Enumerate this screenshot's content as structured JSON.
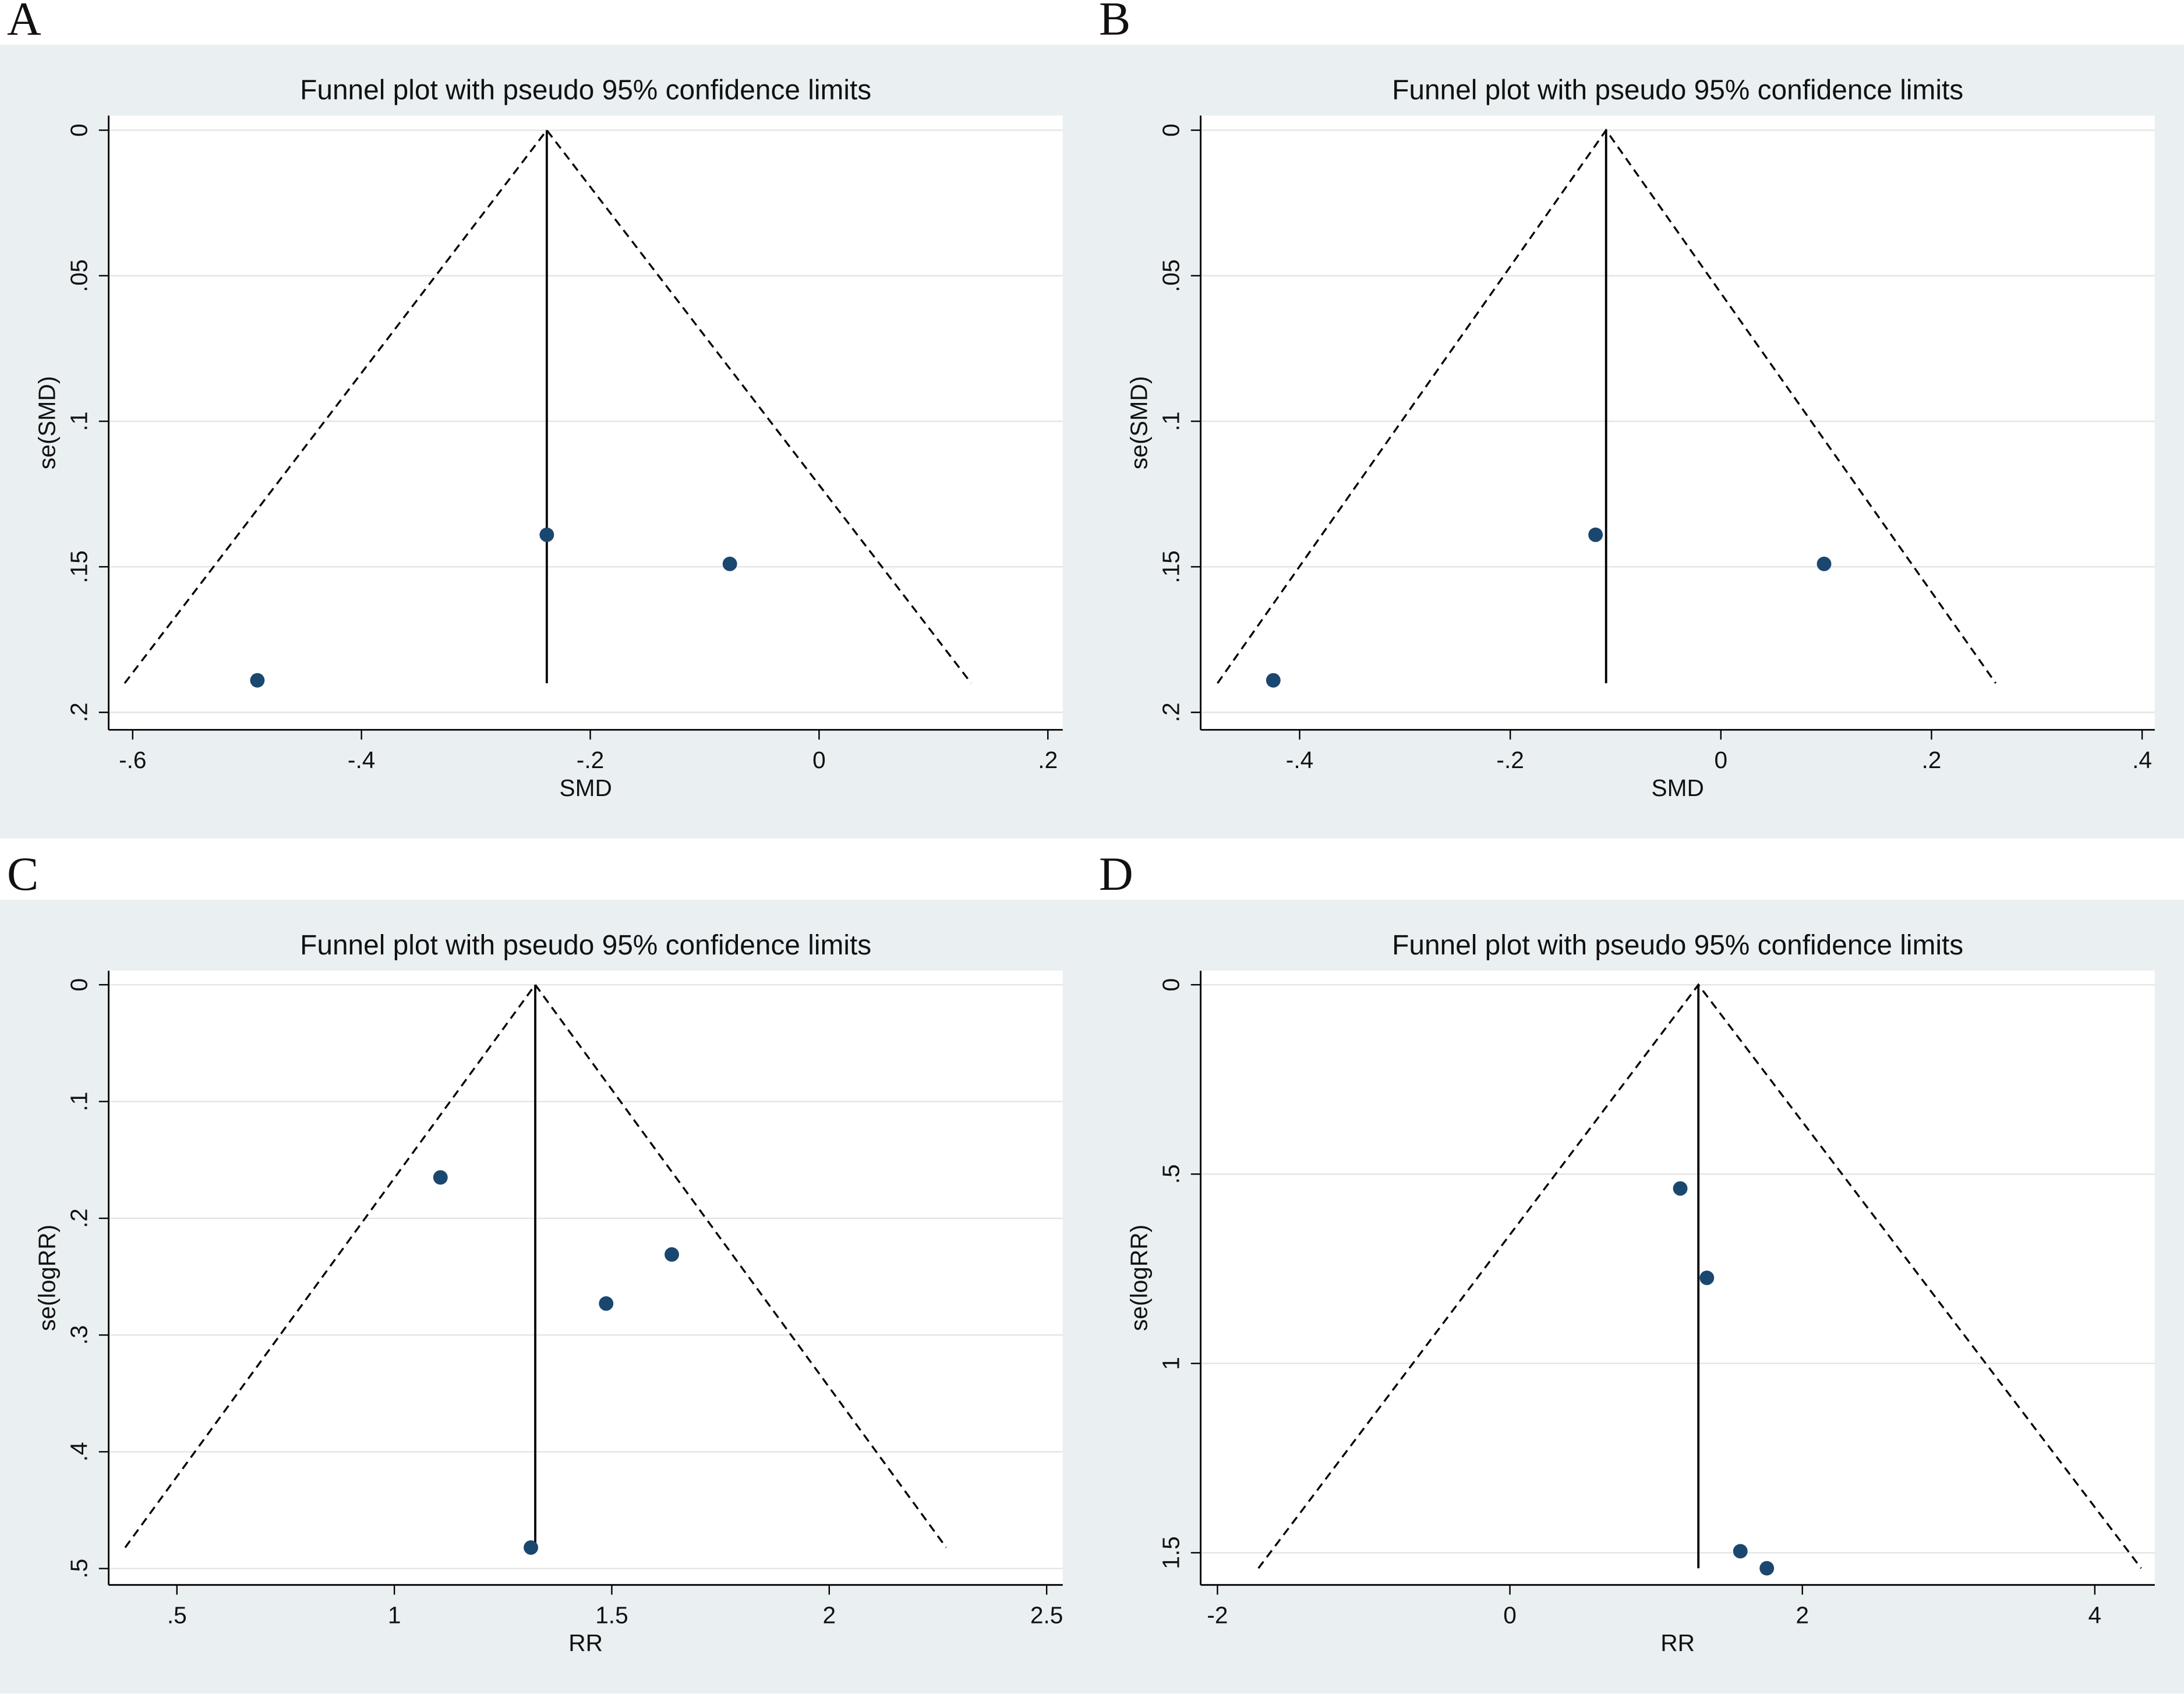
{
  "chart_data": [
    {
      "type": "funnel",
      "panel": "A",
      "title": "Funnel plot with pseudo 95% confidence limits",
      "x_label": "SMD",
      "y_label": "se(SMD)",
      "x": [
        -0.238,
        -0.078,
        -0.491
      ],
      "y": [
        0.139,
        0.149,
        0.189
      ],
      "color": "#1a476f",
      "reference_line": {
        "x": [
          -0.238,
          -0.238
        ],
        "y": [
          0,
          0.19
        ]
      },
      "funnel": {
        "x": [
          -0.607,
          -0.238,
          0.133
        ],
        "y": [
          0.19,
          0,
          0.19
        ]
      },
      "xlim": [
        -0.621,
        0.213
      ],
      "ylim": [
        -0.005,
        0.206
      ],
      "y_reversed": true,
      "grid": true,
      "xticks": [
        {
          "value": -0.6,
          "label": "-.6"
        },
        {
          "value": -0.4,
          "label": "-.4"
        },
        {
          "value": -0.2,
          "label": "-.2"
        },
        0,
        {
          "value": 0.2,
          "label": ".2"
        }
      ],
      "yticks": [
        0,
        {
          "value": 0.05,
          "label": ".05"
        },
        {
          "value": 0.1,
          "label": ".1"
        },
        {
          "value": 0.15,
          "label": ".15"
        },
        {
          "value": 0.2,
          "label": ".2"
        }
      ]
    },
    {
      "type": "funnel",
      "panel": "B",
      "title": "Funnel plot with pseudo 95% confidence limits",
      "x_label": "SMD",
      "y_label": "se(SMD)",
      "x": [
        -0.119,
        0.098,
        -0.425
      ],
      "y": [
        0.139,
        0.149,
        0.189
      ],
      "color": "#1a476f",
      "reference_line": {
        "x": [
          -0.109,
          -0.109
        ],
        "y": [
          0,
          0.19
        ]
      },
      "funnel": {
        "x": [
          -0.478,
          -0.109,
          0.261
        ],
        "y": [
          0.19,
          0,
          0.19
        ]
      },
      "xlim": [
        -0.494,
        0.412
      ],
      "ylim": [
        -0.005,
        0.206
      ],
      "y_reversed": true,
      "grid": true,
      "xticks": [
        {
          "value": -0.4,
          "label": "-.4"
        },
        {
          "value": -0.2,
          "label": "-.2"
        },
        0,
        {
          "value": 0.2,
          "label": ".2"
        },
        {
          "value": 0.4,
          "label": ".4"
        }
      ],
      "yticks": [
        0,
        {
          "value": 0.05,
          "label": ".05"
        },
        {
          "value": 0.1,
          "label": ".1"
        },
        {
          "value": 0.15,
          "label": ".15"
        },
        {
          "value": 0.2,
          "label": ".2"
        }
      ]
    },
    {
      "type": "funnel",
      "panel": "C",
      "title": "Funnel plot with pseudo 95% confidence limits",
      "x_label": "RR",
      "y_label": "se(logRR)",
      "x": [
        1.106,
        1.638,
        1.487,
        1.314
      ],
      "y": [
        0.165,
        0.231,
        0.273,
        0.482
      ],
      "color": "#1a476f",
      "reference_line": {
        "x": [
          1.324,
          1.324
        ],
        "y": [
          0,
          0.482
        ]
      },
      "funnel": {
        "x": [
          0.381,
          1.324,
          2.269
        ],
        "y": [
          0.482,
          0,
          0.482
        ]
      },
      "xlim": [
        0.343,
        2.537
      ],
      "ylim": [
        -0.012,
        0.514
      ],
      "y_reversed": true,
      "grid": true,
      "xticks": [
        {
          "value": 0.5,
          "label": ".5"
        },
        1,
        1.5,
        2,
        2.5
      ],
      "yticks": [
        0,
        {
          "value": 0.1,
          "label": ".1"
        },
        {
          "value": 0.2,
          "label": ".2"
        },
        {
          "value": 0.3,
          "label": ".3"
        },
        {
          "value": 0.4,
          "label": ".4"
        },
        {
          "value": 0.5,
          "label": ".5"
        }
      ]
    },
    {
      "type": "funnel",
      "panel": "D",
      "title": "Funnel plot with pseudo 95% confidence limits",
      "x_label": "RR",
      "y_label": "se(logRR)",
      "x": [
        1.165,
        1.347,
        1.576,
        1.757
      ],
      "y": [
        0.538,
        0.774,
        1.496,
        1.541
      ],
      "color": "#1a476f",
      "reference_line": {
        "x": [
          1.289,
          1.289
        ],
        "y": [
          0,
          1.541
        ]
      },
      "funnel": {
        "x": [
          -1.72,
          1.289,
          4.317
        ],
        "y": [
          1.541,
          0,
          1.541
        ]
      },
      "xlim": [
        -2.115,
        4.41
      ],
      "ylim": [
        -0.037,
        1.585
      ],
      "y_reversed": true,
      "grid": true,
      "xticks": [
        -2,
        0,
        2,
        4
      ],
      "yticks": [
        0,
        {
          "value": 0.5,
          "label": ".5"
        },
        1,
        1.5
      ]
    }
  ]
}
